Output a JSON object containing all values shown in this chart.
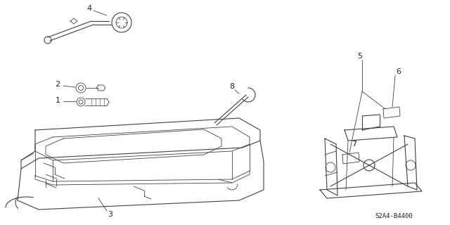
{
  "bg_color": "#ffffff",
  "line_color": "#404040",
  "label_color": "#222222",
  "diagram_id": "S2A4-B4400",
  "figsize": [
    6.4,
    3.2
  ],
  "dpi": 100
}
